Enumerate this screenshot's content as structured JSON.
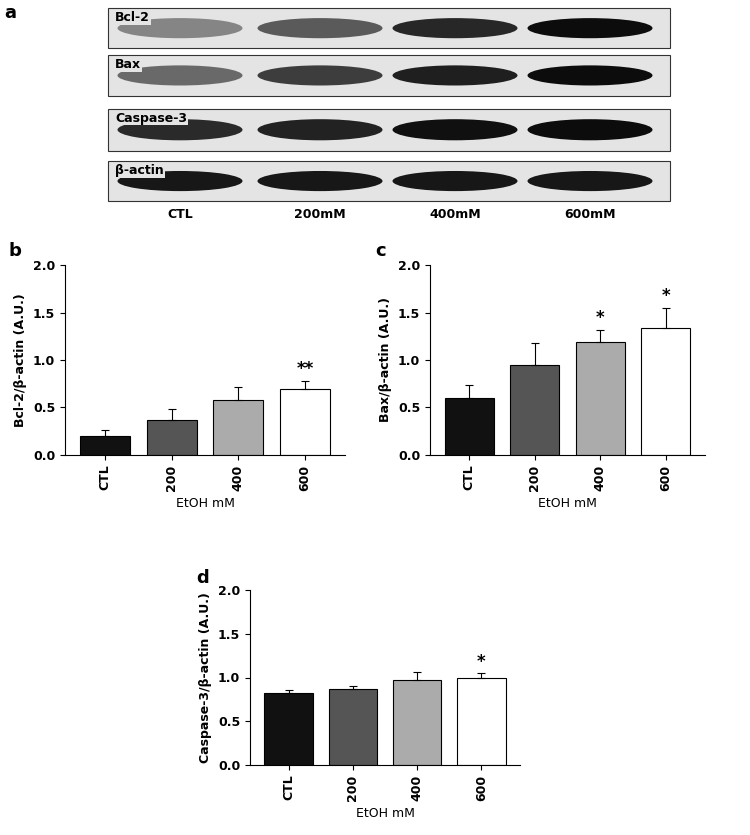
{
  "blot": {
    "title": "a",
    "rows": [
      "Bcl-2",
      "Bax",
      "Caspase-3",
      "β-actin"
    ],
    "lanes": [
      "CTL",
      "200mM",
      "400mM",
      "600mM"
    ]
  },
  "chart_data": [
    {
      "type": "bar",
      "title": "b",
      "categories": [
        "CTL",
        "200",
        "400",
        "600"
      ],
      "values": [
        0.2,
        0.37,
        0.58,
        0.69
      ],
      "errors": [
        0.06,
        0.11,
        0.14,
        0.09
      ],
      "colors": [
        "#111111",
        "#555555",
        "#ababab",
        "#ffffff"
      ],
      "x_label": "EtOH mM",
      "y_label": "Bcl-2/β-actin (A.U.)",
      "ylim": [
        0,
        2
      ],
      "yticks": [
        {
          "value": 0,
          "label": "0.0"
        },
        0.5,
        {
          "value": 1,
          "label": "1.0"
        },
        1.5,
        {
          "value": 2,
          "label": "2.0"
        }
      ],
      "annotations": [
        {
          "category": "600",
          "text": "**"
        }
      ]
    },
    {
      "type": "bar",
      "title": "c",
      "categories": [
        "CTL",
        "200",
        "400",
        "600"
      ],
      "values": [
        0.6,
        0.95,
        1.19,
        1.34
      ],
      "errors": [
        0.14,
        0.23,
        0.13,
        0.21
      ],
      "colors": [
        "#111111",
        "#555555",
        "#ababab",
        "#ffffff"
      ],
      "x_label": "EtOH mM",
      "y_label": "Bax/β-actin (A.U.)",
      "ylim": [
        0,
        2
      ],
      "yticks": [
        {
          "value": 0,
          "label": "0.0"
        },
        0.5,
        {
          "value": 1,
          "label": "1.0"
        },
        1.5,
        {
          "value": 2,
          "label": "2.0"
        }
      ],
      "annotations": [
        {
          "category": "400",
          "text": "*"
        },
        {
          "category": "600",
          "text": "*"
        }
      ]
    },
    {
      "type": "bar",
      "title": "d",
      "categories": [
        "CTL",
        "200",
        "400",
        "600"
      ],
      "values": [
        0.82,
        0.87,
        0.97,
        1.0
      ],
      "errors": [
        0.04,
        0.03,
        0.09,
        0.05
      ],
      "colors": [
        "#111111",
        "#555555",
        "#ababab",
        "#ffffff"
      ],
      "x_label": "EtOH mM",
      "y_label": "Caspase-3/β-actin (A.U.)",
      "ylim": [
        0,
        2
      ],
      "yticks": [
        {
          "value": 0,
          "label": "0.0"
        },
        0.5,
        {
          "value": 1,
          "label": "1.0"
        },
        1.5,
        {
          "value": 2,
          "label": "2.0"
        }
      ],
      "annotations": [
        {
          "category": "600",
          "text": "*"
        }
      ]
    }
  ]
}
